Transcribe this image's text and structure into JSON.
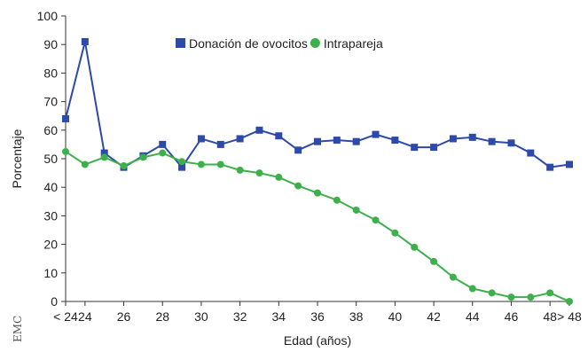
{
  "chart_data": {
    "type": "line",
    "xlabel": "Edad (años)",
    "ylabel": "Porcentaje",
    "ylim": [
      0,
      100
    ],
    "yticks": [
      "0",
      "10",
      "20",
      "30",
      "40",
      "50",
      "60",
      "70",
      "80",
      "90",
      "100"
    ],
    "x": [
      "< 24",
      "24",
      "25",
      "26",
      "27",
      "28",
      "29",
      "30",
      "31",
      "32",
      "33",
      "34",
      "35",
      "36",
      "37",
      "38",
      "39",
      "40",
      "41",
      "42",
      "43",
      "44",
      "45",
      "46",
      "47",
      "48",
      "> 48"
    ],
    "xtick_labels": [
      "< 24",
      "24",
      "26",
      "28",
      "30",
      "32",
      "34",
      "36",
      "38",
      "40",
      "42",
      "44",
      "46",
      "48",
      "> 48"
    ],
    "grid": false,
    "legend_position": "top",
    "series": [
      {
        "name": "Donación de ovocitos",
        "color": "#2e4aa8",
        "marker": "square",
        "values": [
          64,
          91,
          52,
          47,
          51,
          55,
          47,
          57,
          55,
          57,
          60,
          58,
          53,
          56,
          56.5,
          56,
          58.5,
          56.5,
          54,
          54,
          57,
          57.5,
          56,
          55.5,
          52,
          47,
          48
        ]
      },
      {
        "name": "Intrapareja",
        "color": "#3db04b",
        "marker": "circle",
        "values": [
          52.5,
          48,
          50.5,
          47.5,
          50.5,
          52,
          49,
          48,
          48,
          46,
          45,
          43.5,
          40.5,
          38,
          35.5,
          32,
          28.5,
          24,
          19,
          14,
          8.5,
          4.5,
          3,
          1.5,
          1.5,
          3,
          0
        ]
      }
    ]
  },
  "watermark": {
    "text": "EMC"
  }
}
